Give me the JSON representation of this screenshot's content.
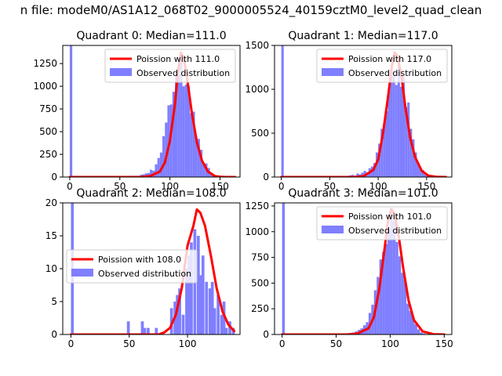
{
  "figure_title": "n file: modeM0/AS1A12_068T02_9000005524_40159cztM0_level2_quad_clean",
  "colors": {
    "poisson_line": "#ff0000",
    "observed_bar": "#7f7fff",
    "axes": "#000000",
    "legend_border": "#cccccc"
  },
  "chart_data": [
    {
      "type": "bar",
      "title": "Quadrant 0: Median=111.0",
      "xlim": [
        -7,
        170
      ],
      "ylim": [
        0,
        1450
      ],
      "xticks": [
        0,
        50,
        100,
        150
      ],
      "yticks": [
        0,
        250,
        500,
        750,
        1000,
        1250
      ],
      "legend_position": "top-right",
      "series": [
        {
          "name": "Poission with 111.0",
          "type": "line",
          "x": [
            0,
            70,
            80,
            90,
            95,
            100,
            105,
            108,
            111,
            114,
            117,
            122,
            127,
            132,
            138,
            145,
            150,
            155,
            165
          ],
          "y": [
            0,
            0,
            10,
            60,
            160,
            400,
            800,
            1150,
            1370,
            1300,
            1100,
            700,
            380,
            180,
            60,
            10,
            3,
            0,
            0
          ]
        },
        {
          "name": "Observed distribution",
          "type": "bar",
          "bin_width": 2.5,
          "x": [
            0,
            70,
            72.5,
            75,
            77.5,
            80,
            82.5,
            85,
            87.5,
            90,
            92.5,
            95,
            97.5,
            100,
            102.5,
            105,
            107.5,
            110,
            112.5,
            115,
            117.5,
            120,
            122.5,
            125,
            127.5,
            130,
            132.5,
            135,
            137.5,
            140,
            142.5
          ],
          "y": [
            1450,
            25,
            30,
            40,
            45,
            80,
            70,
            140,
            210,
            270,
            450,
            600,
            790,
            800,
            940,
            1140,
            1130,
            1300,
            1000,
            1020,
            1000,
            700,
            720,
            430,
            420,
            300,
            160,
            150,
            100,
            50,
            20
          ]
        }
      ]
    },
    {
      "type": "bar",
      "title": "Quadrant 1: Median=117.0",
      "xlim": [
        -7,
        176
      ],
      "ylim": [
        0,
        1500
      ],
      "xticks": [
        0,
        50,
        100,
        150
      ],
      "yticks": [
        0,
        500,
        1000,
        1500
      ],
      "legend_position": "top-right",
      "series": [
        {
          "name": "Poission with 117.0",
          "type": "line",
          "x": [
            0,
            75,
            85,
            95,
            100,
            105,
            110,
            114,
            117,
            120,
            124,
            128,
            133,
            138,
            145,
            152,
            160,
            170
          ],
          "y": [
            0,
            0,
            10,
            80,
            200,
            500,
            900,
            1250,
            1420,
            1380,
            1150,
            800,
            450,
            230,
            70,
            15,
            2,
            0
          ]
        },
        {
          "name": "Observed distribution",
          "type": "bar",
          "bin_width": 2.5,
          "x": [
            0,
            70,
            72.5,
            75,
            77.5,
            80,
            82.5,
            85,
            87.5,
            90,
            92.5,
            95,
            97.5,
            100,
            102.5,
            105,
            107.5,
            110,
            112.5,
            115,
            117.5,
            120,
            122.5,
            125,
            127.5,
            130,
            132.5,
            135,
            137.5,
            140,
            142.5,
            145,
            147.5,
            150
          ],
          "y": [
            1500,
            20,
            25,
            15,
            40,
            30,
            50,
            70,
            55,
            100,
            120,
            160,
            280,
            380,
            550,
            600,
            750,
            1000,
            1150,
            1200,
            1050,
            1300,
            1030,
            1150,
            800,
            850,
            550,
            430,
            280,
            150,
            90,
            80,
            30,
            20
          ]
        }
      ]
    },
    {
      "type": "bar",
      "title": "Quadrant 2: Median=108.0",
      "xlim": [
        -7,
        145
      ],
      "ylim": [
        0,
        20
      ],
      "xticks": [
        0,
        50,
        100
      ],
      "yticks": [
        0,
        5,
        10,
        15,
        20
      ],
      "legend_position": "center-left",
      "series": [
        {
          "name": "Poission with 108.0",
          "type": "line",
          "x": [
            0,
            75,
            80,
            85,
            90,
            95,
            100,
            105,
            108,
            111,
            115,
            120,
            125,
            130,
            135,
            140
          ],
          "y": [
            0,
            0,
            0.3,
            1,
            3,
            7,
            13.5,
            16.5,
            19,
            18.5,
            16.5,
            12,
            7,
            3.5,
            1.5,
            0.5
          ]
        },
        {
          "name": "Observed distribution",
          "type": "bar",
          "bin_width": 2.5,
          "x": [
            0,
            48,
            60,
            62,
            65,
            72,
            85,
            88,
            90,
            92,
            95,
            98,
            100,
            102,
            105,
            108,
            110,
            112,
            115,
            118,
            120,
            122,
            125,
            128,
            130,
            132,
            135,
            138
          ],
          "y": [
            20,
            2,
            2,
            1,
            1,
            1,
            4,
            5,
            6,
            7,
            3,
            10,
            12,
            14,
            16,
            15,
            9,
            12,
            8,
            7,
            8,
            4,
            6,
            3,
            5,
            1,
            2,
            1
          ]
        }
      ]
    },
    {
      "type": "bar",
      "title": "Quadrant 3: Median=101.0",
      "xlim": [
        -7,
        157
      ],
      "ylim": [
        0,
        1280
      ],
      "xticks": [
        0,
        50,
        100,
        150
      ],
      "yticks": [
        0,
        250,
        500,
        750,
        1000,
        1250
      ],
      "legend_position": "top-right",
      "series": [
        {
          "name": "Poission with 101.0",
          "type": "line",
          "x": [
            0,
            60,
            70,
            80,
            85,
            90,
            95,
            98,
            101,
            104,
            108,
            112,
            117,
            122,
            130,
            140,
            150
          ],
          "y": [
            0,
            0,
            10,
            60,
            170,
            450,
            850,
            1100,
            1220,
            1170,
            950,
            650,
            330,
            140,
            30,
            3,
            0
          ]
        },
        {
          "name": "Observed distribution",
          "type": "bar",
          "bin_width": 2.5,
          "x": [
            0,
            60,
            62.5,
            65,
            67.5,
            70,
            72.5,
            75,
            77.5,
            80,
            82.5,
            85,
            87.5,
            90,
            92.5,
            95,
            97.5,
            100,
            102.5,
            105,
            107.5,
            110,
            112.5,
            115,
            117.5,
            120,
            122.5,
            125,
            127.5,
            130
          ],
          "y": [
            1280,
            10,
            15,
            20,
            30,
            45,
            60,
            90,
            120,
            210,
            290,
            430,
            560,
            730,
            800,
            880,
            1020,
            1200,
            1100,
            900,
            760,
            600,
            530,
            300,
            230,
            170,
            100,
            50,
            20,
            10
          ]
        }
      ]
    }
  ]
}
